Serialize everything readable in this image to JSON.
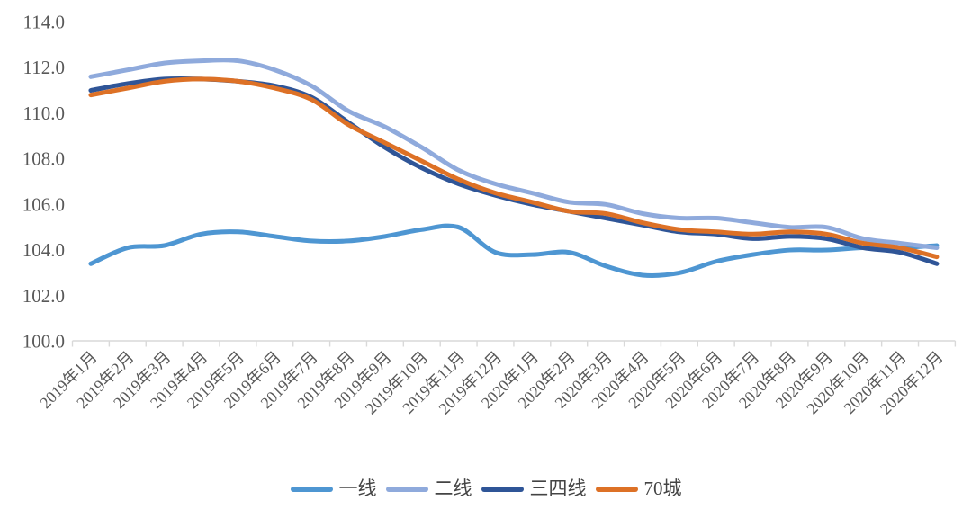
{
  "chart_data": {
    "type": "line",
    "title": "",
    "xlabel": "",
    "ylabel": "",
    "categories": [
      "2019年1月",
      "2019年2月",
      "2019年3月",
      "2019年4月",
      "2019年5月",
      "2019年6月",
      "2019年7月",
      "2019年8月",
      "2019年9月",
      "2019年10月",
      "2019年11月",
      "2019年12月",
      "2020年1月",
      "2020年2月",
      "2020年3月",
      "2020年4月",
      "2020年5月",
      "2020年6月",
      "2020年7月",
      "2020年8月",
      "2020年9月",
      "2020年10月",
      "2020年11月",
      "2020年12月"
    ],
    "series": [
      {
        "name": "一线",
        "color": "#4E96D2",
        "values": [
          103.4,
          104.1,
          104.2,
          104.7,
          104.8,
          104.6,
          104.4,
          104.4,
          104.6,
          104.9,
          105.0,
          103.9,
          103.8,
          103.9,
          103.3,
          102.9,
          103.0,
          103.5,
          103.8,
          104.0,
          104.0,
          104.1,
          104.1,
          104.2
        ]
      },
      {
        "name": "二线",
        "color": "#8FAADC",
        "values": [
          111.6,
          111.9,
          112.2,
          112.3,
          112.3,
          111.9,
          111.2,
          110.1,
          109.4,
          108.5,
          107.5,
          106.9,
          106.5,
          106.1,
          106.0,
          105.6,
          105.4,
          105.4,
          105.2,
          105.0,
          105.0,
          104.5,
          104.3,
          104.1
        ]
      },
      {
        "name": "三四线",
        "color": "#2F5597",
        "values": [
          111.0,
          111.3,
          111.5,
          111.5,
          111.4,
          111.2,
          110.7,
          109.6,
          108.5,
          107.6,
          106.9,
          106.4,
          106.0,
          105.7,
          105.4,
          105.1,
          104.8,
          104.7,
          104.5,
          104.6,
          104.5,
          104.1,
          103.9,
          103.4
        ]
      },
      {
        "name": "70城",
        "color": "#DD7126",
        "values": [
          110.8,
          111.1,
          111.4,
          111.5,
          111.4,
          111.1,
          110.6,
          109.5,
          108.7,
          107.9,
          107.1,
          106.5,
          106.1,
          105.7,
          105.6,
          105.2,
          104.9,
          104.8,
          104.7,
          104.8,
          104.7,
          104.3,
          104.1,
          103.7
        ]
      }
    ],
    "y_axis": {
      "min": 100.0,
      "max": 114.0,
      "step": 2.0,
      "tick_labels": [
        "100.0",
        "102.0",
        "104.0",
        "106.0",
        "108.0",
        "110.0",
        "112.0",
        "114.0"
      ]
    },
    "x_axis": {
      "label_rotation_deg": -45,
      "ticks_between_categories": true
    },
    "legend_position": "bottom",
    "grid": false
  },
  "style": {
    "axis_line_color": "#D9D9D9",
    "tick_color": "#D9D9D9",
    "axis_label_color": "#595959",
    "legend_text_color": "#444444",
    "background": "#FFFFFF",
    "line_width": 5
  }
}
